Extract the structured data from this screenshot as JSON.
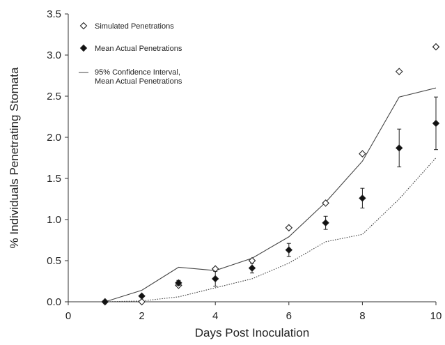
{
  "chart_data": {
    "type": "scatter",
    "xlabel": "Days Post Inoculation",
    "ylabel": "% Individuals Penetrating Stomata",
    "xlim": [
      0,
      10
    ],
    "ylim": [
      0,
      3.5
    ],
    "x_ticks": [
      "0",
      "2",
      "4",
      "6",
      "8",
      "10"
    ],
    "y_ticks": [
      "0.0",
      "0.5",
      "1.0",
      "1.5",
      "2.0",
      "2.5",
      "3.0",
      "3.5"
    ],
    "grid": false,
    "legend_position": "top-left",
    "series": [
      {
        "name": "Simulated Penetrations",
        "marker": "open-diamond",
        "color": "#222222",
        "points": [
          {
            "x": 1,
            "y": 0.0
          },
          {
            "x": 2,
            "y": 0.0
          },
          {
            "x": 3,
            "y": 0.2
          },
          {
            "x": 4,
            "y": 0.4
          },
          {
            "x": 5,
            "y": 0.5
          },
          {
            "x": 6,
            "y": 0.9
          },
          {
            "x": 7,
            "y": 1.2
          },
          {
            "x": 8,
            "y": 1.8
          },
          {
            "x": 9,
            "y": 2.8
          },
          {
            "x": 10,
            "y": 3.1
          }
        ]
      },
      {
        "name": "Mean Actual Penetrations",
        "marker": "filled-diamond",
        "color": "#111111",
        "points": [
          {
            "x": 1,
            "y": 0.0,
            "err_low": 0.0,
            "err_high": 0.0
          },
          {
            "x": 2,
            "y": 0.07,
            "err_low": 0.06,
            "err_high": 0.08
          },
          {
            "x": 3,
            "y": 0.23,
            "err_low": 0.2,
            "err_high": 0.26
          },
          {
            "x": 4,
            "y": 0.28,
            "err_low": 0.19,
            "err_high": 0.37
          },
          {
            "x": 5,
            "y": 0.41,
            "err_low": 0.35,
            "err_high": 0.47
          },
          {
            "x": 6,
            "y": 0.63,
            "err_low": 0.55,
            "err_high": 0.71
          },
          {
            "x": 7,
            "y": 0.96,
            "err_low": 0.88,
            "err_high": 1.04
          },
          {
            "x": 8,
            "y": 1.26,
            "err_low": 1.14,
            "err_high": 1.38
          },
          {
            "x": 9,
            "y": 1.87,
            "err_low": 1.64,
            "err_high": 2.1
          },
          {
            "x": 10,
            "y": 2.17,
            "err_low": 1.85,
            "err_high": 2.49
          }
        ]
      },
      {
        "name": "95% Confidence Interval, Mean Actual Penetrations",
        "legend_lines": [
          "95% Confidence Interval,",
          "Mean Actual Penetrations"
        ],
        "kind": "line-upper",
        "color": "#444444",
        "points": [
          {
            "x": 1,
            "y": 0.0
          },
          {
            "x": 2,
            "y": 0.14
          },
          {
            "x": 3,
            "y": 0.42
          },
          {
            "x": 4,
            "y": 0.38
          },
          {
            "x": 5,
            "y": 0.53
          },
          {
            "x": 6,
            "y": 0.79
          },
          {
            "x": 7,
            "y": 1.21
          },
          {
            "x": 8,
            "y": 1.71
          },
          {
            "x": 9,
            "y": 2.49
          },
          {
            "x": 10,
            "y": 2.6
          }
        ]
      },
      {
        "kind": "line-lower",
        "color": "#444444",
        "points": [
          {
            "x": 1,
            "y": 0.0
          },
          {
            "x": 2,
            "y": 0.01
          },
          {
            "x": 3,
            "y": 0.06
          },
          {
            "x": 4,
            "y": 0.17
          },
          {
            "x": 5,
            "y": 0.28
          },
          {
            "x": 6,
            "y": 0.47
          },
          {
            "x": 7,
            "y": 0.73
          },
          {
            "x": 8,
            "y": 0.82
          },
          {
            "x": 9,
            "y": 1.25
          },
          {
            "x": 10,
            "y": 1.75
          }
        ]
      }
    ]
  }
}
